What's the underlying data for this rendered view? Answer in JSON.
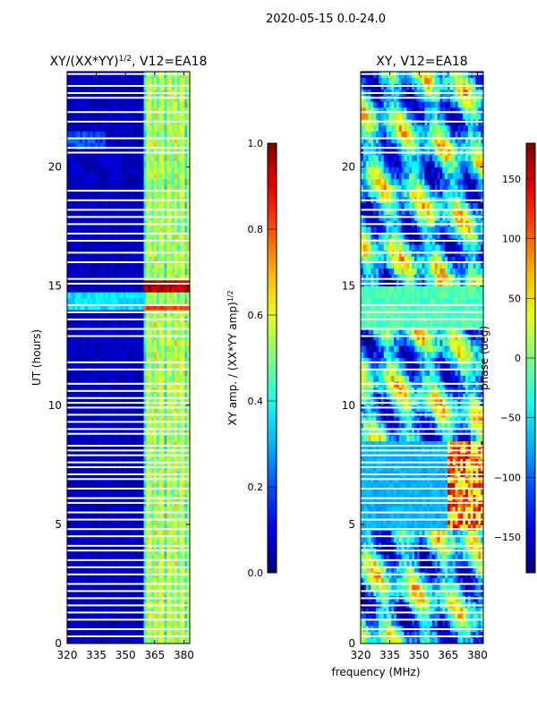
{
  "figure_title": "2020-05-15 0.0-24.0",
  "xlabel_shared": "frequency (MHz)",
  "chart_data": [
    {
      "type": "heatmap",
      "title_main": "XY/(XX*YY)",
      "title_sup": "1/2",
      "title_rest": ", V12=EA18",
      "xlabel": "",
      "ylabel": "UT (hours)",
      "xlim": [
        320,
        383
      ],
      "ylim": [
        0,
        24
      ],
      "xticks": [
        320,
        335,
        350,
        365,
        380
      ],
      "yticks": [
        0,
        5,
        10,
        15,
        20
      ],
      "colorbar": {
        "label_main": "XY amp. / (XX*YY amp)",
        "label_sup": "1/2",
        "range": [
          0.0,
          1.0
        ],
        "ticks": [
          "0.0",
          "0.2",
          "0.4",
          "0.6",
          "0.8",
          "1.0"
        ],
        "tick_values": [
          0.0,
          0.2,
          0.4,
          0.6,
          0.8,
          1.0
        ],
        "colormap": "jet"
      }
    },
    {
      "type": "heatmap",
      "title_main": "XY, V12=EA18",
      "xlabel": "frequency (MHz)",
      "ylabel": "",
      "xlim": [
        320,
        383
      ],
      "ylim": [
        0,
        24
      ],
      "xticks": [
        320,
        335,
        350,
        365,
        380
      ],
      "yticks": [
        0,
        5,
        10,
        15,
        20
      ],
      "colorbar": {
        "label_main": "phase (deg)",
        "range": [
          -180,
          180
        ],
        "ticks": [
          "−150",
          "−100",
          "−50",
          "0",
          "50",
          "100",
          "150"
        ],
        "tick_values": [
          -150,
          -100,
          -50,
          0,
          50,
          100,
          150
        ],
        "colormap": "jet"
      }
    }
  ]
}
